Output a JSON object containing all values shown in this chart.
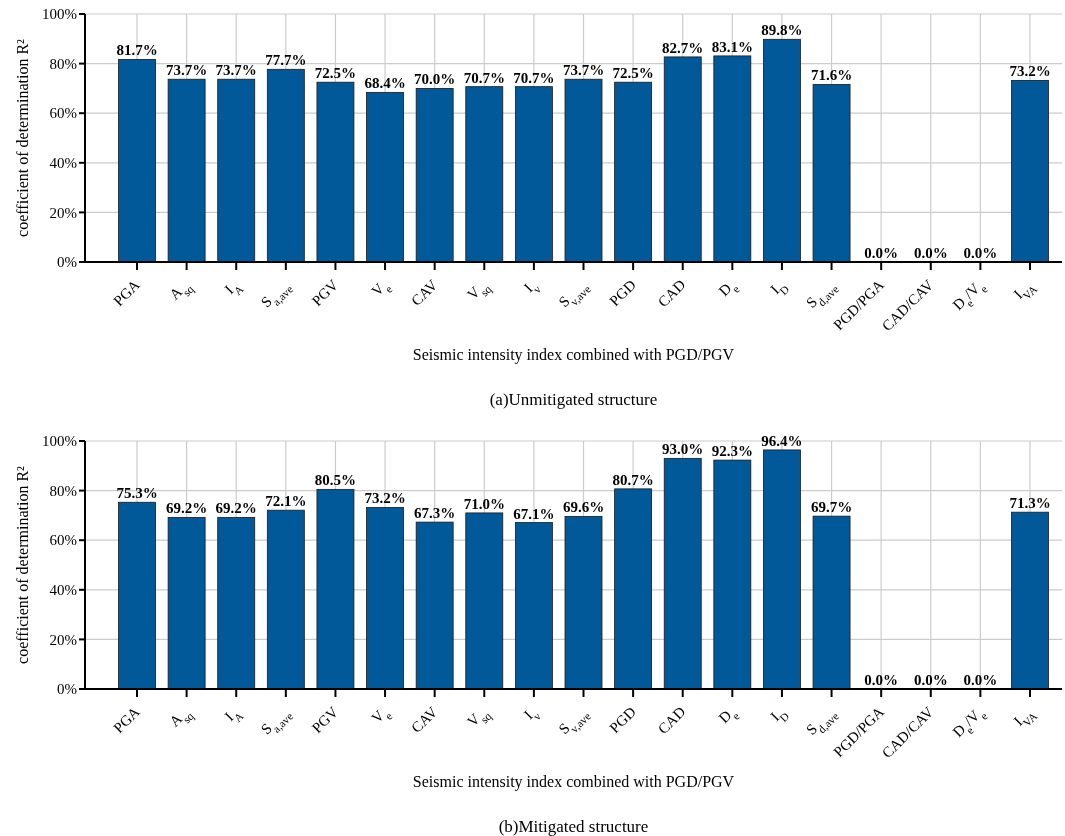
{
  "chart_data": [
    {
      "type": "bar",
      "title": "(a)Unmitigated structure",
      "xlabel": "Seismic intensity index combined with PGD/PGV",
      "ylabel": "coefficient of determination R²",
      "categories": [
        "PGA",
        "A$_{sq}$",
        "I$_{A}$",
        "S$_{a,ave}$",
        "PGV",
        "V$_{e}$",
        "CAV",
        "V$_{sq}$",
        "I$_{v}$",
        "S$_{v,ave}$",
        "PGD",
        "CAD",
        "D$_{e}$",
        "I$_{D}$",
        "S$_{d,ave}$",
        "PGD/PGA",
        "CAD/CAV",
        "D$_{e}$/V$_{e}$",
        "I$_{VA}$"
      ],
      "values": [
        81.7,
        73.7,
        73.7,
        77.7,
        72.5,
        68.4,
        70.0,
        70.7,
        70.7,
        73.7,
        72.5,
        82.7,
        83.1,
        89.8,
        71.6,
        0.0,
        0.0,
        0.0,
        73.2
      ],
      "value_labels": [
        "81.7%",
        "73.7%",
        "73.7%",
        "77.7%",
        "72.5%",
        "68.4%",
        "70.0%",
        "70.7%",
        "70.7%",
        "73.7%",
        "72.5%",
        "82.7%",
        "83.1%",
        "89.8%",
        "71.6%",
        "0.0%",
        "0.0%",
        "0.0%",
        "73.2%"
      ],
      "color": "#02599a",
      "ylim": [
        0,
        100
      ],
      "yticks": [
        {
          "value": 0,
          "label": "0%"
        },
        {
          "value": 20,
          "label": "20%"
        },
        {
          "value": 40,
          "label": "40%"
        },
        {
          "value": 60,
          "label": "60%"
        },
        {
          "value": 80,
          "label": "80%"
        },
        {
          "value": 100,
          "label": "100%"
        }
      ],
      "grid": true
    },
    {
      "type": "bar",
      "title": "(b)Mitigated structure",
      "xlabel": "Seismic intensity index combined with PGD/PGV",
      "ylabel": "coefficient of determination R²",
      "categories": [
        "PGA",
        "A$_{sq}$",
        "I$_{A}$",
        "S$_{a,ave}$",
        "PGV",
        "V$_{e}$",
        "CAV",
        "V$_{sq}$",
        "I$_{v}$",
        "S$_{v,ave}$",
        "PGD",
        "CAD",
        "D$_{e}$",
        "I$_{D}$",
        "S$_{d,ave}$",
        "PGD/PGA",
        "CAD/CAV",
        "D$_{e}$/V$_{e}$",
        "I$_{VA}$"
      ],
      "values": [
        75.3,
        69.2,
        69.2,
        72.1,
        80.5,
        73.2,
        67.3,
        71.0,
        67.1,
        69.6,
        80.7,
        93.0,
        92.3,
        96.4,
        69.7,
        0.0,
        0.0,
        0.0,
        71.3
      ],
      "value_labels": [
        "75.3%",
        "69.2%",
        "69.2%",
        "72.1%",
        "80.5%",
        "73.2%",
        "67.3%",
        "71.0%",
        "67.1%",
        "69.6%",
        "80.7%",
        "93.0%",
        "92.3%",
        "96.4%",
        "69.7%",
        "0.0%",
        "0.0%",
        "0.0%",
        "71.3%"
      ],
      "color": "#02599a",
      "ylim": [
        0,
        100
      ],
      "yticks": [
        {
          "value": 0,
          "label": "0%"
        },
        {
          "value": 20,
          "label": "20%"
        },
        {
          "value": 40,
          "label": "40%"
        },
        {
          "value": 60,
          "label": "60%"
        },
        {
          "value": 80,
          "label": "80%"
        },
        {
          "value": 100,
          "label": "100%"
        }
      ],
      "grid": true
    }
  ]
}
